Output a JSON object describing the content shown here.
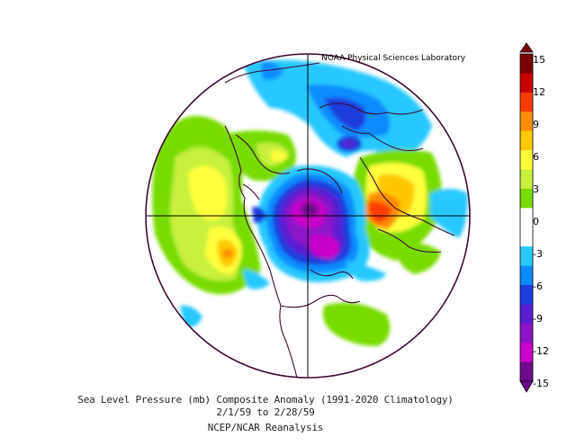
{
  "credit": "NOAA Physical Sciences Laboratory",
  "caption": {
    "line1": "Sea Level Pressure (mb) Composite Anomaly (1991-2020 Climatology)",
    "line2": "2/1/59  to 2/28/59",
    "line3": "NCEP/NCAR Reanalysis"
  },
  "colorbar": {
    "labels": [
      "15",
      "12",
      "9",
      "6",
      "3",
      "0",
      "-3",
      "-6",
      "-9",
      "-12",
      "-15"
    ],
    "colors": [
      "#7a0000",
      "#c80000",
      "#ff3c00",
      "#ff8c00",
      "#ffc800",
      "#ffff3c",
      "#c8f03c",
      "#78dc00",
      "#ffffff",
      "#ffffff",
      "#28c8ff",
      "#0a8cff",
      "#1e3cdc",
      "#5a1ed2",
      "#8c14c8",
      "#c800c8",
      "#6e0a8c"
    ]
  },
  "colors": {
    "border": "#3c0a32",
    "grid": "#000000"
  }
}
